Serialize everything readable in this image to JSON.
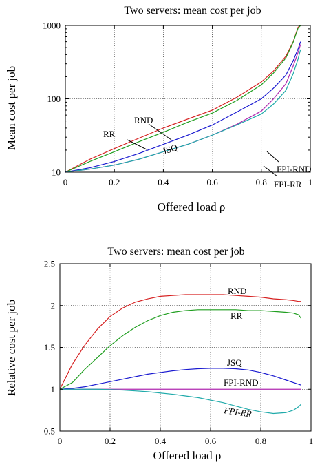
{
  "colors": {
    "RND": "#d62020",
    "RR": "#1f9e1f",
    "JSQ": "#1a1ad0",
    "FPI-RND": "#b02ab0",
    "FPI-RR": "#20aaaa"
  },
  "chart_data": [
    {
      "type": "line",
      "title": "Two servers: mean cost per job",
      "xlabel": "Offered load ρ",
      "ylabel": "Mean cost per job",
      "yscale": "log",
      "xlim": [
        0,
        1
      ],
      "ylim": [
        10,
        1000
      ],
      "xticks": [
        0,
        0.2,
        0.4,
        0.6,
        0.8,
        1
      ],
      "xtick_labels": [
        "0",
        "0.2",
        "0.4",
        "0.6",
        "0.8",
        "1"
      ],
      "yticks": [
        10,
        100,
        1000
      ],
      "ytick_labels": [
        "10",
        "100",
        "1000"
      ],
      "grid": true,
      "x": [
        0,
        0.1,
        0.2,
        0.3,
        0.4,
        0.5,
        0.6,
        0.7,
        0.8,
        0.85,
        0.9,
        0.93,
        0.95,
        0.96
      ],
      "series": [
        {
          "name": "RND",
          "values": [
            10,
            15,
            21,
            29,
            40,
            53,
            70,
            105,
            170,
            240,
            380,
            600,
            950,
            1000
          ]
        },
        {
          "name": "RR",
          "values": [
            10,
            14,
            19,
            26,
            35,
            48,
            64,
            95,
            155,
            225,
            360,
            590,
            920,
            1000
          ]
        },
        {
          "name": "JSQ",
          "values": [
            10,
            11.5,
            14,
            18,
            24,
            32,
            44,
            66,
            100,
            140,
            210,
            330,
            480,
            600
          ]
        },
        {
          "name": "FPI-RND",
          "values": [
            10,
            11,
            12.5,
            15,
            19,
            24,
            32,
            45,
            68,
            100,
            160,
            280,
            430,
            550
          ]
        },
        {
          "name": "FPI-RR",
          "values": [
            10,
            11,
            12.5,
            15,
            19,
            24,
            32,
            44,
            62,
            85,
            130,
            220,
            350,
            470
          ]
        }
      ],
      "annotations": [
        {
          "text": "RND",
          "series": "RND"
        },
        {
          "text": "RR",
          "series": "RR"
        },
        {
          "text": "JSQ",
          "series": "JSQ"
        },
        {
          "text": "FPI-RND",
          "series": "FPI-RND"
        },
        {
          "text": "FPI-RR",
          "series": "FPI-RR"
        }
      ]
    },
    {
      "type": "line",
      "title": "Two servers: mean cost per job",
      "xlabel": "Offered load ρ",
      "ylabel": "Relative cost per job",
      "yscale": "linear",
      "xlim": [
        0,
        1
      ],
      "ylim": [
        0.5,
        2.5
      ],
      "xticks": [
        0,
        0.2,
        0.4,
        0.6,
        0.8,
        1
      ],
      "xtick_labels": [
        "0",
        "0.2",
        "0.4",
        "0.6",
        "0.8",
        "1"
      ],
      "yticks": [
        0.5,
        1,
        1.5,
        2,
        2.5
      ],
      "ytick_labels": [
        "0.5",
        "1",
        "1.5",
        "2",
        "2.5"
      ],
      "grid": true,
      "x": [
        0,
        0.05,
        0.1,
        0.15,
        0.2,
        0.25,
        0.3,
        0.35,
        0.4,
        0.45,
        0.5,
        0.55,
        0.6,
        0.65,
        0.7,
        0.75,
        0.8,
        0.85,
        0.9,
        0.93,
        0.95,
        0.96
      ],
      "series": [
        {
          "name": "RND",
          "values": [
            1.0,
            1.3,
            1.53,
            1.72,
            1.87,
            1.97,
            2.04,
            2.08,
            2.11,
            2.12,
            2.13,
            2.13,
            2.13,
            2.13,
            2.12,
            2.11,
            2.1,
            2.08,
            2.07,
            2.06,
            2.05,
            2.05
          ]
        },
        {
          "name": "RR",
          "values": [
            1.0,
            1.08,
            1.24,
            1.38,
            1.52,
            1.64,
            1.74,
            1.82,
            1.88,
            1.92,
            1.94,
            1.95,
            1.95,
            1.95,
            1.95,
            1.94,
            1.94,
            1.93,
            1.92,
            1.91,
            1.89,
            1.85
          ]
        },
        {
          "name": "JSQ",
          "values": [
            1.0,
            1.01,
            1.03,
            1.06,
            1.09,
            1.12,
            1.15,
            1.18,
            1.2,
            1.22,
            1.235,
            1.245,
            1.25,
            1.25,
            1.245,
            1.23,
            1.2,
            1.16,
            1.11,
            1.08,
            1.06,
            1.05
          ]
        },
        {
          "name": "FPI-RND",
          "values": [
            1,
            1,
            1,
            1,
            1,
            1,
            1,
            1,
            1,
            1,
            1,
            1,
            1,
            1,
            1,
            1,
            1,
            1,
            1,
            1,
            1,
            1
          ]
        },
        {
          "name": "FPI-RR",
          "values": [
            1.0,
            1.0,
            1.0,
            1.0,
            0.995,
            0.99,
            0.98,
            0.97,
            0.955,
            0.94,
            0.92,
            0.9,
            0.87,
            0.84,
            0.8,
            0.76,
            0.73,
            0.71,
            0.72,
            0.75,
            0.79,
            0.82
          ]
        }
      ],
      "annotations": [
        {
          "text": "RND",
          "series": "RND"
        },
        {
          "text": "RR",
          "series": "RR"
        },
        {
          "text": "JSQ",
          "series": "JSQ"
        },
        {
          "text": "FPI-RND",
          "series": "FPI-RND"
        },
        {
          "text": "FPI-RR",
          "series": "FPI-RR"
        }
      ]
    }
  ]
}
